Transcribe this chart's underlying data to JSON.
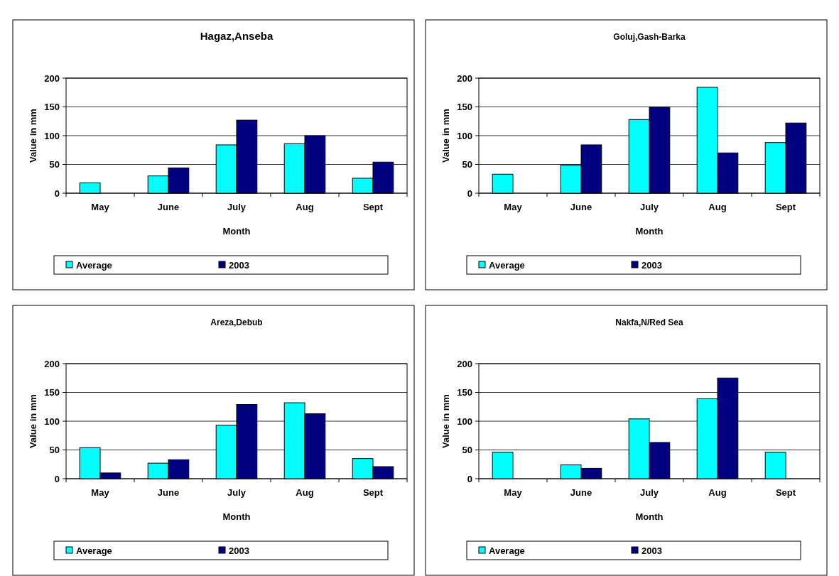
{
  "chart_data": [
    {
      "type": "bar",
      "title": "Hagaz,Anseba",
      "xlabel": "Month",
      "ylabel": "Value in mm",
      "categories": [
        "May",
        "June",
        "July",
        "Aug",
        "Sept"
      ],
      "series": [
        {
          "name": "Average",
          "color": "#00ffff",
          "values": [
            18,
            30,
            84,
            86,
            26
          ]
        },
        {
          "name": "2003",
          "color": "#000080",
          "values": [
            null,
            44,
            127,
            100,
            54
          ]
        }
      ],
      "ylim": [
        0,
        200
      ],
      "yticks": [
        0,
        50,
        100,
        150,
        200
      ],
      "grid": "y",
      "legend": "bottom"
    },
    {
      "type": "bar",
      "title": "Goluj,Gash-Barka",
      "xlabel": "Month",
      "ylabel": "Value in mm",
      "categories": [
        "May",
        "June",
        "July",
        "Aug",
        "Sept"
      ],
      "series": [
        {
          "name": "Average",
          "color": "#00ffff",
          "values": [
            33,
            49,
            128,
            184,
            88
          ]
        },
        {
          "name": "2003",
          "color": "#000080",
          "values": [
            null,
            84,
            150,
            70,
            122
          ]
        }
      ],
      "ylim": [
        0,
        200
      ],
      "yticks": [
        0,
        50,
        100,
        150,
        200
      ],
      "grid": "y",
      "legend": "bottom"
    },
    {
      "type": "bar",
      "title": "Areza,Debub",
      "xlabel": "Month",
      "ylabel": "Value in mm",
      "categories": [
        "May",
        "June",
        "July",
        "Aug",
        "Sept"
      ],
      "series": [
        {
          "name": "Average",
          "color": "#00ffff",
          "values": [
            54,
            27,
            93,
            132,
            35
          ]
        },
        {
          "name": "2003",
          "color": "#000080",
          "values": [
            10,
            33,
            129,
            113,
            21
          ]
        }
      ],
      "ylim": [
        0,
        200
      ],
      "yticks": [
        0,
        50,
        100,
        150,
        200
      ],
      "grid": "y",
      "legend": "bottom"
    },
    {
      "type": "bar",
      "title": "Nakfa,N/Red Sea",
      "xlabel": "Month",
      "ylabel": "Value in mm",
      "categories": [
        "May",
        "June",
        "July",
        "Aug",
        "Sept"
      ],
      "series": [
        {
          "name": "Average",
          "color": "#00ffff",
          "values": [
            46,
            24,
            104,
            139,
            46
          ]
        },
        {
          "name": "2003",
          "color": "#000080",
          "values": [
            null,
            18,
            63,
            175,
            null
          ]
        }
      ],
      "ylim": [
        0,
        200
      ],
      "yticks": [
        0,
        50,
        100,
        150,
        200
      ],
      "grid": "y",
      "legend": "bottom"
    }
  ]
}
